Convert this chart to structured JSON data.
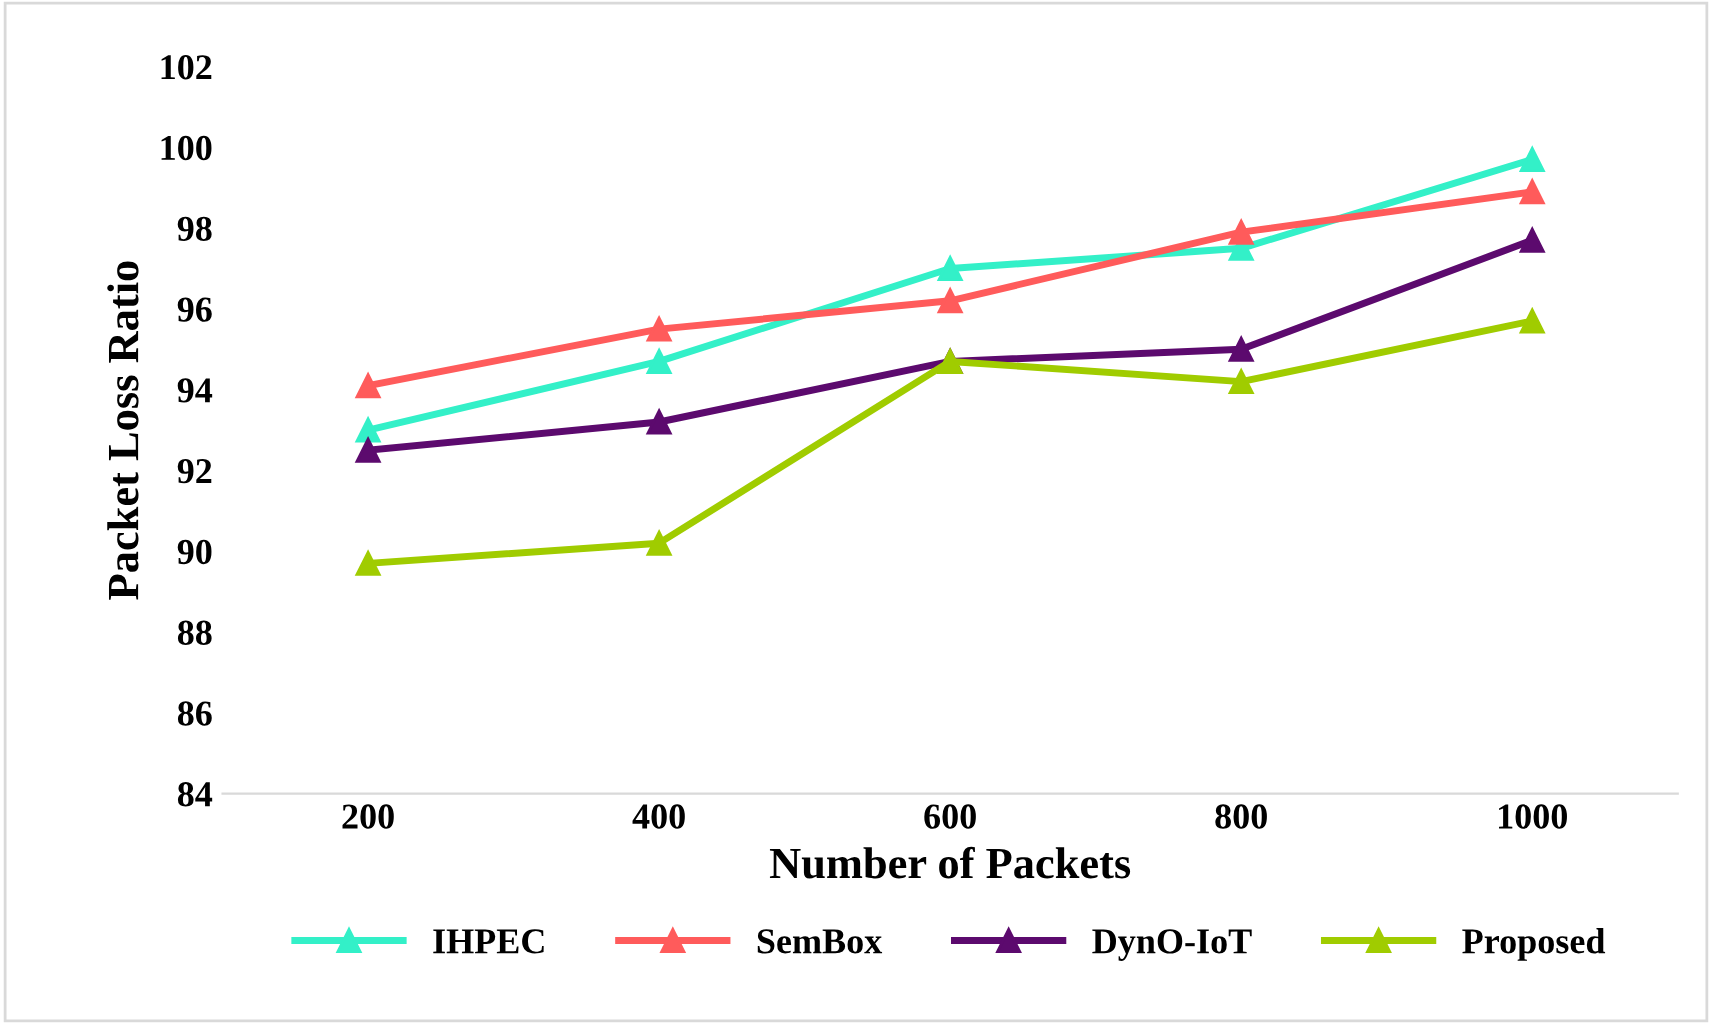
{
  "chart_data": {
    "type": "line",
    "xlabel": "Number of Packets",
    "ylabel": "Packet Loss Ratio",
    "categories": [
      "200",
      "400",
      "600",
      "800",
      "1000"
    ],
    "series": [
      {
        "name": "IHPEC",
        "color": "#33f0c8",
        "values": [
          93.0,
          94.7,
          97.0,
          97.5,
          99.7
        ]
      },
      {
        "name": "SemBox",
        "color": "#ff5b5b",
        "values": [
          94.1,
          95.5,
          96.2,
          97.9,
          98.9
        ]
      },
      {
        "name": "DynO-IoT",
        "color": "#5c0a6e",
        "values": [
          92.5,
          93.2,
          94.7,
          95.0,
          97.7
        ]
      },
      {
        "name": "Proposed",
        "color": "#a0cc00",
        "values": [
          89.7,
          90.2,
          94.7,
          94.2,
          95.7
        ]
      }
    ],
    "ylim": [
      84,
      102
    ],
    "yticks": [
      84,
      86,
      88,
      90,
      92,
      94,
      96,
      98,
      100,
      102
    ],
    "legend": "bottom",
    "marker": "triangle",
    "line_style": "solid",
    "grid": false
  }
}
